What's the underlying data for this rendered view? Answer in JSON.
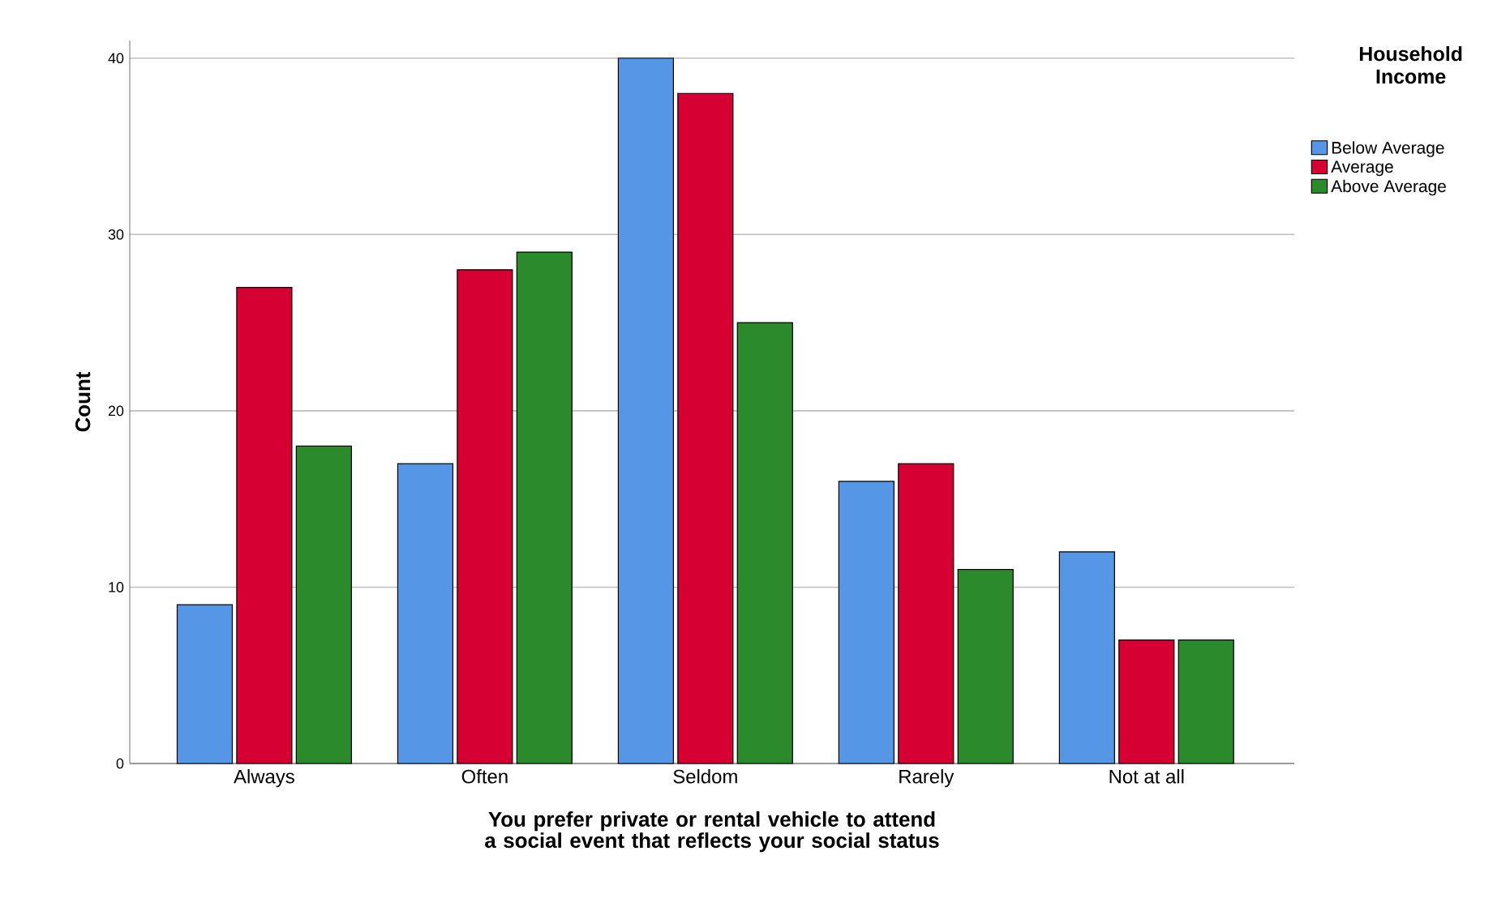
{
  "chart_data": {
    "type": "bar",
    "xlabel": "You prefer private or rental vehicle to attend a social event that reflects your social status",
    "ylabel": "Count",
    "legend_title": "Household Income",
    "categories": [
      "Always",
      "Often",
      "Seldom",
      "Rarely",
      "Not at all"
    ],
    "series": [
      {
        "name": "Below Average",
        "color": "#5596e6",
        "values": [
          9,
          17,
          40,
          16,
          12
        ]
      },
      {
        "name": "Average",
        "color": "#d70033",
        "values": [
          27,
          28,
          38,
          17,
          7
        ]
      },
      {
        "name": "Above Average",
        "color": "#2b8a2b",
        "values": [
          18,
          29,
          25,
          11,
          7
        ]
      }
    ],
    "ylim": [
      0,
      41
    ],
    "yticks": [
      0,
      10,
      20,
      30,
      40
    ],
    "grid": "y",
    "legend": "top right"
  }
}
